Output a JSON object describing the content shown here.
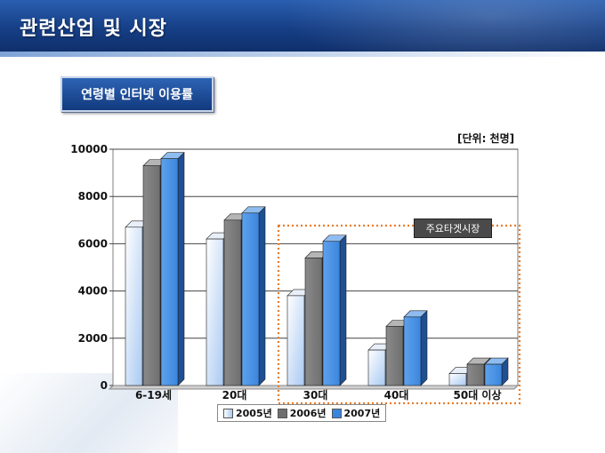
{
  "header": {
    "title": "관련산업 및 시장"
  },
  "chart_box_title": "연령별 인터넷 이용률",
  "unit_label": "[단위: 천명]",
  "callout_label": "주요타겟시장",
  "colors": {
    "series_2005_front": "#ffffff",
    "series_2005_back": "#a9c9f2",
    "series_2006": "#6f6f6f",
    "series_2007": "#3a86de",
    "highlight_dotted": "#e87c2a"
  },
  "chart_data": {
    "type": "bar",
    "title": "",
    "xlabel": "",
    "ylabel": "",
    "ylim": [
      0,
      10000
    ],
    "yticks": [
      "0",
      "2000",
      "4000",
      "6000",
      "8000",
      "10000"
    ],
    "categories": [
      "6-19세",
      "20대",
      "30대",
      "40대",
      "50대 이상"
    ],
    "series": [
      {
        "name": "2005년",
        "values": [
          6700,
          6200,
          3800,
          1500,
          500
        ]
      },
      {
        "name": "2006년",
        "values": [
          9300,
          7000,
          5400,
          2500,
          900
        ]
      },
      {
        "name": "2007년",
        "values": [
          9600,
          7300,
          6100,
          2900,
          900
        ]
      }
    ],
    "grid": true,
    "legend_position": "bottom",
    "highlighted_categories": [
      "30대",
      "40대",
      "50대 이상"
    ]
  }
}
